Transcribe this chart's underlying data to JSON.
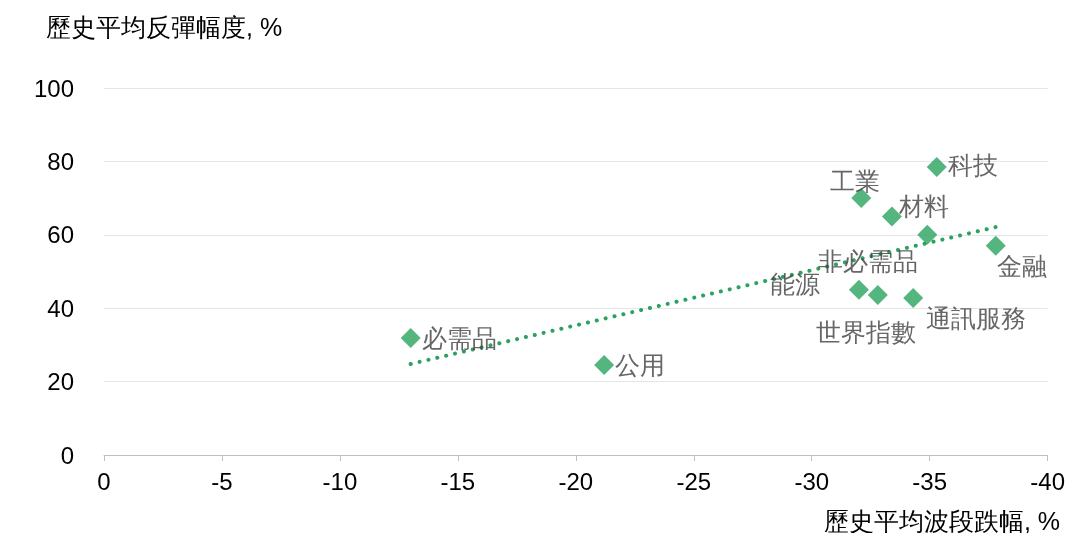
{
  "chart_data": {
    "type": "scatter",
    "xlabel": "歷史平均波段跌幅, %",
    "ylabel": "歷史平均反彈幅度, %",
    "xlim": [
      0,
      -40
    ],
    "xticks": [
      0,
      -5,
      -10,
      -15,
      -20,
      -25,
      -30,
      -35,
      -40
    ],
    "ylim": [
      0,
      100
    ],
    "yticks": [
      0,
      20,
      40,
      60,
      80,
      100
    ],
    "grid": "y",
    "marker": "diamond",
    "series": [
      {
        "type": "scatter",
        "color": "#2ba35e",
        "x": [
          -13.0,
          -21.2,
          -32.1,
          -35.3,
          -33.4,
          -34.9,
          -37.8,
          -32.0,
          -32.8,
          -34.3
        ],
        "values": [
          31.9,
          24.5,
          70,
          78.5,
          65,
          60,
          57,
          45,
          43.6,
          42.8
        ]
      },
      {
        "type": "line",
        "color": "#2ba35e",
        "line_style": "dotted",
        "marker": "none",
        "x": [
          -13.0,
          -38.0
        ],
        "values": [
          24.8,
          62.4
        ]
      }
    ],
    "annotations": [
      {
        "text": "必需品",
        "x": -13.0,
        "y": 31.9
      },
      {
        "text": "公用",
        "x": -21.2,
        "y": 24.5
      },
      {
        "text": "工業",
        "x": -32.1,
        "y": 70
      },
      {
        "text": "科技",
        "x": -35.3,
        "y": 78.5
      },
      {
        "text": "材料",
        "x": -33.4,
        "y": 65
      },
      {
        "text": "非必需品",
        "x": -34.9,
        "y": 60
      },
      {
        "text": "金融",
        "x": -37.8,
        "y": 57
      },
      {
        "text": "能源",
        "x": -32.0,
        "y": 45
      },
      {
        "text": "世界指數",
        "x": -32.8,
        "y": 43.6
      },
      {
        "text": "通訊服務",
        "x": -34.3,
        "y": 42.8
      }
    ]
  }
}
